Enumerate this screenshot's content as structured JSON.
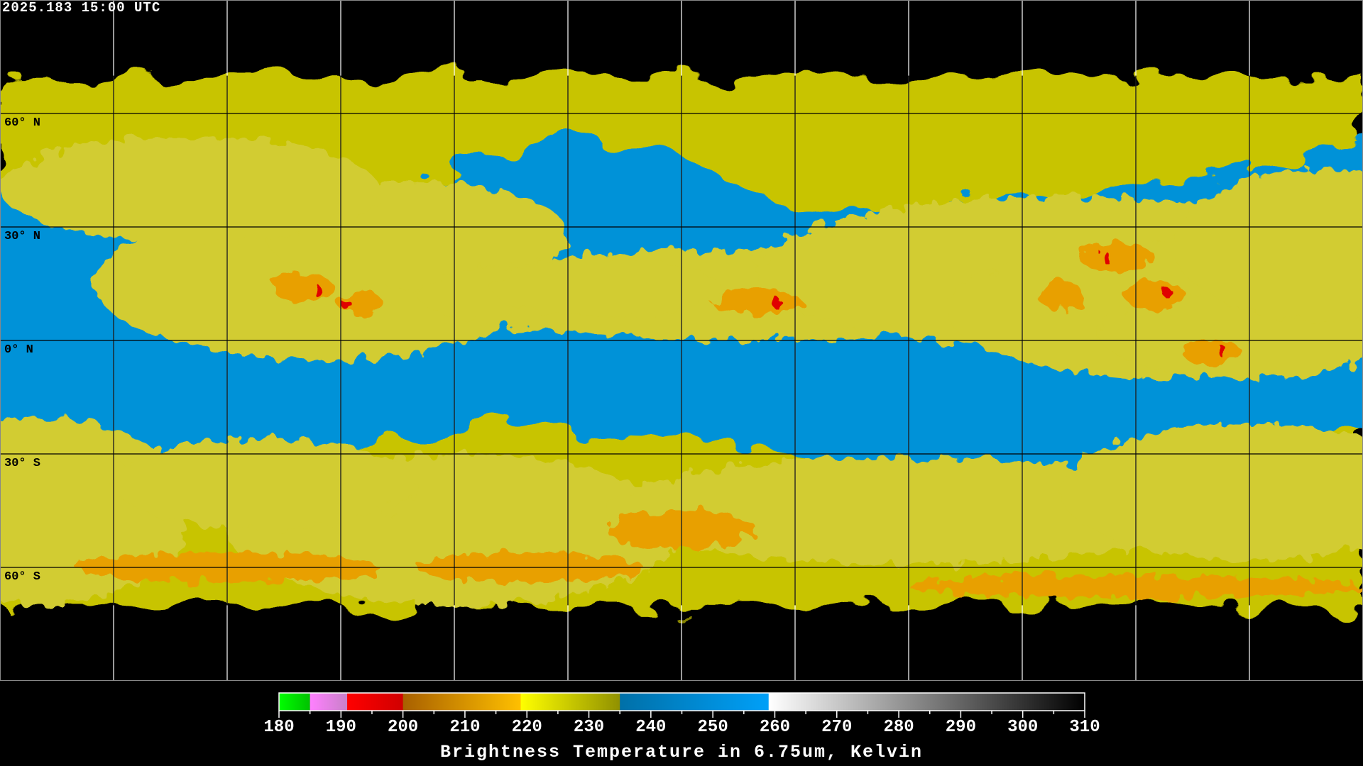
{
  "header": {
    "title": "2025.183 15:00 UTC"
  },
  "map": {
    "projection": "equirectangular",
    "lon_grid_step_deg": 30,
    "lat_labels": [
      "60° N",
      "30° N",
      "0° N",
      "30° S",
      "60° S"
    ],
    "lat_label_values": [
      60,
      30,
      0,
      -30,
      -60
    ],
    "colors": {
      "background": "#000000",
      "cold_cloud": "#c8c400",
      "moist": "#d2cc30",
      "dry": "#0092d8",
      "deep_convection": "#e8a000",
      "core": "#e00000"
    }
  },
  "colorbar": {
    "title": "Brightness Temperature in 6.75um, Kelvin",
    "min": 180,
    "max": 310,
    "ticks": [
      "180",
      "190",
      "200",
      "210",
      "220",
      "230",
      "240",
      "250",
      "260",
      "270",
      "280",
      "290",
      "300",
      "310"
    ],
    "segments": [
      {
        "from": 180,
        "to": 185,
        "start": "#00ff00",
        "end": "#00c000"
      },
      {
        "from": 185,
        "to": 191,
        "start": "#ff80ff",
        "end": "#c880c8"
      },
      {
        "from": 191,
        "to": 200,
        "start": "#ff0000",
        "end": "#d00000"
      },
      {
        "from": 200,
        "to": 219,
        "start": "#a86000",
        "end": "#ffc000"
      },
      {
        "from": 219,
        "to": 235,
        "start": "#ffff00",
        "end": "#909000"
      },
      {
        "from": 235,
        "to": 259,
        "start": "#0070a8",
        "end": "#00a0f8"
      },
      {
        "from": 259,
        "to": 310,
        "start": "#ffffff",
        "end": "#000000"
      }
    ]
  }
}
